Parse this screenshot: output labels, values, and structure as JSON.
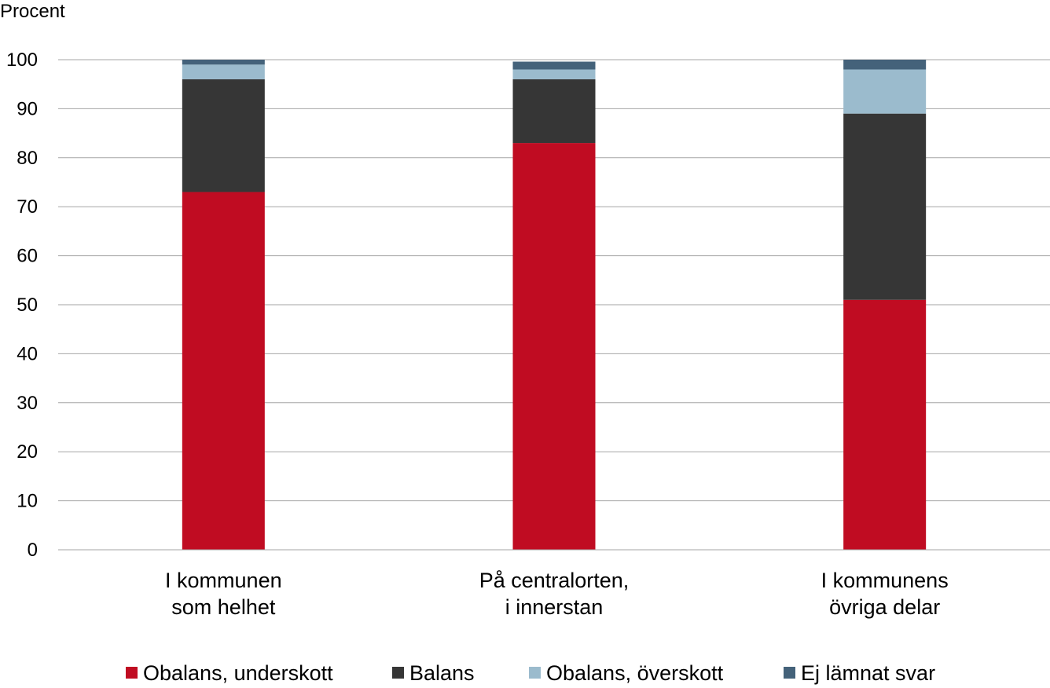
{
  "chart_data": {
    "type": "bar",
    "stacked": true,
    "title": "",
    "ylabel": "Procent",
    "xlabel": "",
    "ylim": [
      0,
      100
    ],
    "yticks": [
      "0",
      "10",
      "20",
      "30",
      "40",
      "50",
      "60",
      "70",
      "80",
      "90",
      "100"
    ],
    "grid": true,
    "legend_position": "bottom",
    "categories": [
      [
        "I kommunen",
        "som helhet"
      ],
      [
        "På centralorten,",
        "i innerstan"
      ],
      [
        "I kommunens",
        "övriga delar"
      ]
    ],
    "series": [
      {
        "name": "Obalans, underskott",
        "color": "#c00c22",
        "values": [
          73,
          83,
          51
        ]
      },
      {
        "name": "Balans",
        "color": "#363636",
        "values": [
          23,
          13,
          38
        ]
      },
      {
        "name": "Obalans, överskott",
        "color": "#9bbbcd",
        "values": [
          3,
          2,
          9
        ]
      },
      {
        "name": "Ej lämnat svar",
        "color": "#44627a",
        "values": [
          1,
          1.6,
          2
        ]
      }
    ]
  }
}
